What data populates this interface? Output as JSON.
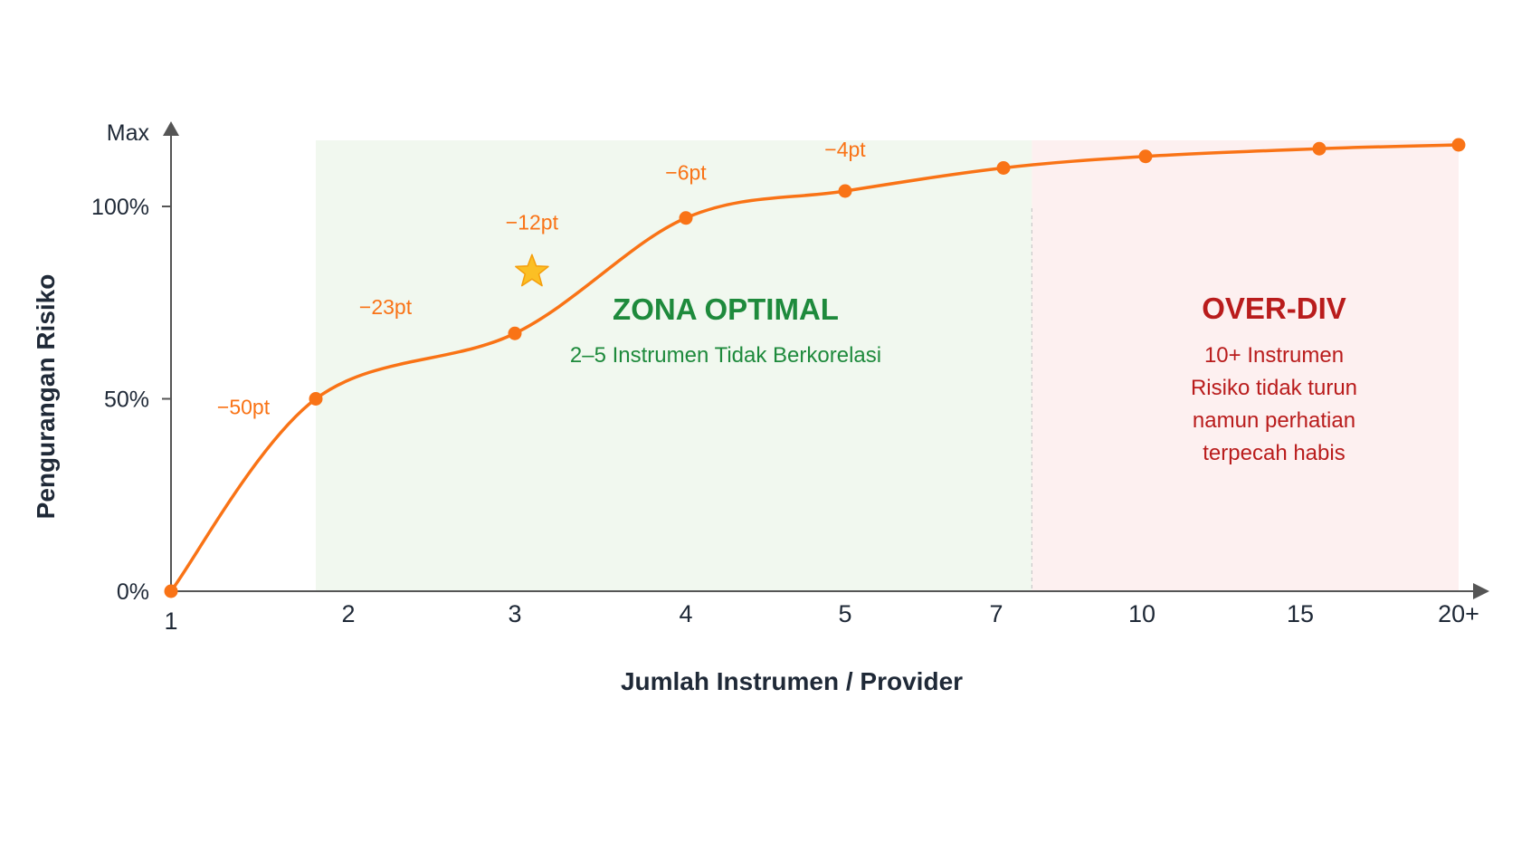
{
  "chart_data": {
    "type": "line",
    "xlabel": "Jumlah Instrumen / Provider",
    "ylabel": "Pengurangan Risiko",
    "y_ticks": [
      "0%",
      "50%",
      "100%",
      "Max"
    ],
    "y_tick_values": [
      0,
      50,
      100,
      120
    ],
    "ylim": [
      0,
      120
    ],
    "x_ticks": [
      "1",
      "2",
      "3",
      "4",
      "5",
      "7",
      "10",
      "15",
      "20+"
    ],
    "grid": false,
    "legend": "none",
    "series": [
      {
        "x": [
          "1",
          "2",
          "3",
          "4",
          "5",
          "7",
          "10",
          "15",
          "20+"
        ],
        "values": [
          0,
          50,
          67,
          97,
          104,
          110,
          113,
          115,
          116
        ],
        "color": "#f97316"
      }
    ],
    "annotations": [
      {
        "text": "−50pt",
        "x": 1.5,
        "y": 46
      },
      {
        "text": "−23pt",
        "x": 2.35,
        "y": 72
      },
      {
        "text": "−12pt",
        "x": 3.1,
        "y": 94
      },
      {
        "text": "−6pt",
        "x": 4.0,
        "y": 107
      },
      {
        "text": "−4pt",
        "x": 5.0,
        "y": 113
      }
    ],
    "highlight": {
      "x": 3.1,
      "y": 83,
      "icon": "star-icon",
      "color": "#fbbf24"
    },
    "zones": [
      {
        "name": "optimal",
        "title": "ZONA OPTIMAL",
        "subtitle": [
          "2–5 Instrumen Tidak Berkorelasi"
        ],
        "x_from": 2,
        "x_to": 7.6,
        "fill": "#f1f8ef",
        "text_color": "#1e8a3c"
      },
      {
        "name": "over-div",
        "title": "OVER-DIV",
        "subtitle": [
          "10+ Instrumen",
          "Risiko tidak turun",
          "namun perhatian",
          "terpecah habis"
        ],
        "x_from": 7.6,
        "x_to": 20,
        "fill": "#fdf0f0",
        "text_color": "#b91c1c"
      }
    ]
  }
}
